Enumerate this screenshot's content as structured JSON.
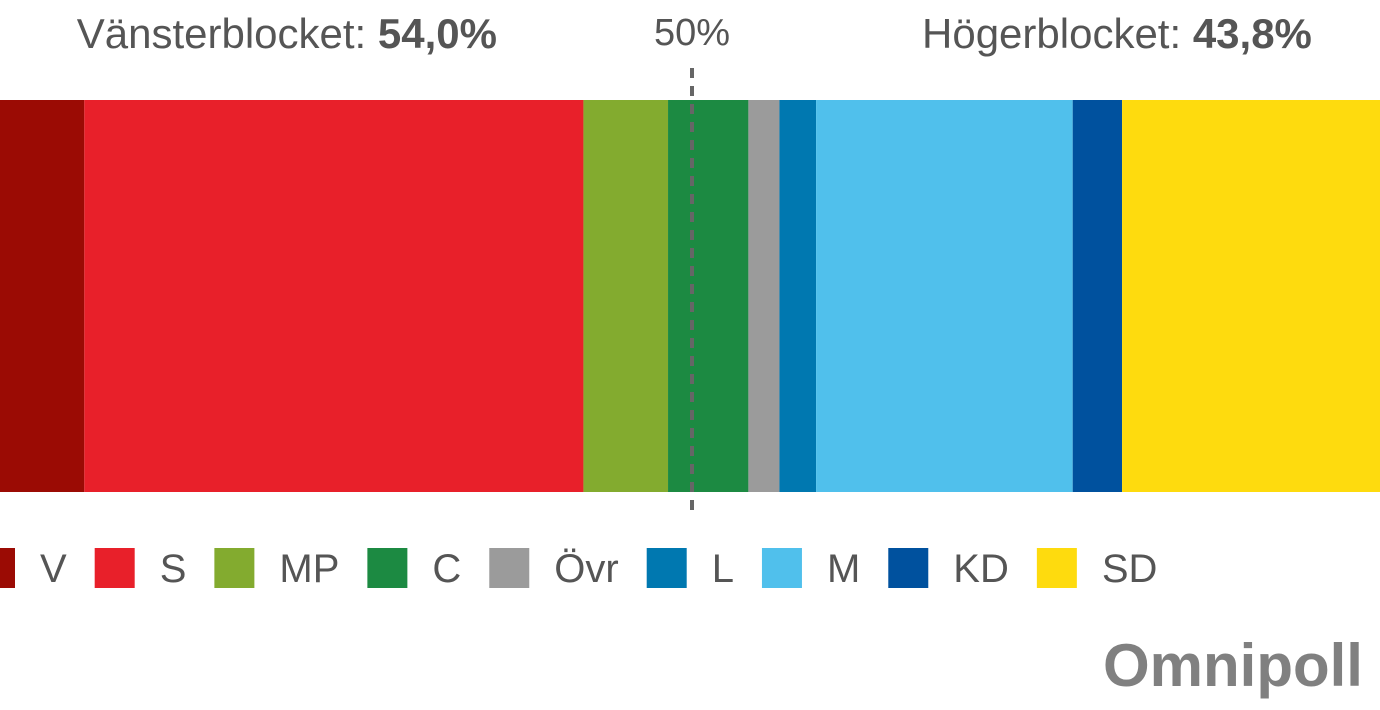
{
  "chart_data": {
    "type": "bar",
    "orientation": "horizontal",
    "stacked": true,
    "blocks": [
      {
        "label": "Vänsterblocket:",
        "value": "54,0%"
      },
      {
        "label": "Högerblocket:",
        "value": "43,8%"
      }
    ],
    "series": [
      {
        "name": "V",
        "color": "#9b0b04",
        "values": [
          6.9
        ]
      },
      {
        "name": "S",
        "color": "#e8202a",
        "values": [
          35.4
        ]
      },
      {
        "name": "MP",
        "color": "#83ab2f",
        "values": [
          6.0
        ]
      },
      {
        "name": "C",
        "color": "#1c8a42",
        "values": [
          5.7
        ]
      },
      {
        "name": "Övr",
        "color": "#9b9b9b",
        "values": [
          2.2
        ]
      },
      {
        "name": "L",
        "color": "#0078b0",
        "values": [
          2.6
        ]
      },
      {
        "name": "M",
        "color": "#50c0ec",
        "values": [
          18.2
        ]
      },
      {
        "name": "KD",
        "color": "#00519e",
        "values": [
          3.5
        ]
      },
      {
        "name": "SD",
        "color": "#fedb0e",
        "values": [
          19.5
        ]
      }
    ],
    "xlim": [
      0,
      100
    ],
    "xticks": [
      {
        "value": 50,
        "label": "50%"
      }
    ],
    "logo": "Omnipoll"
  }
}
